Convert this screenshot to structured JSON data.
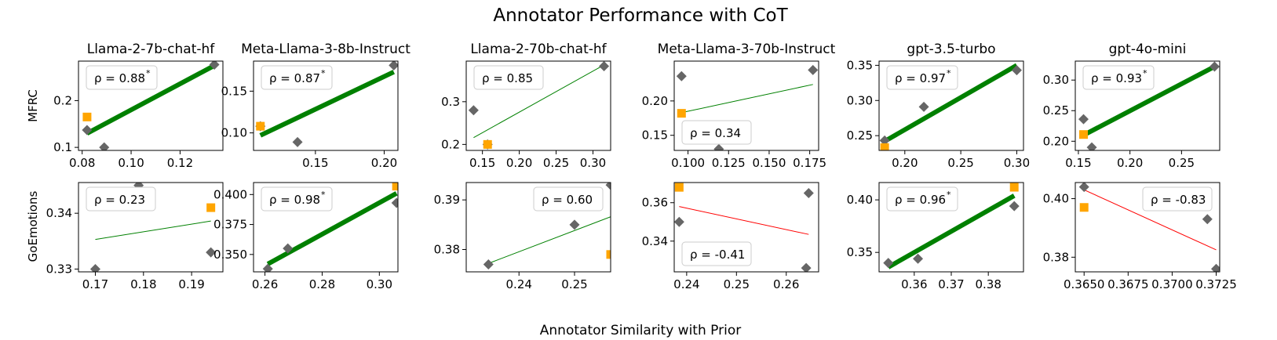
{
  "figure": {
    "title": "Annotator Performance with CoT",
    "xlabel": "Annotator Similarity with Prior",
    "row_labels": [
      "MFRC",
      "GoEmotions"
    ],
    "col_titles": [
      "Llama-2-7b-chat-hf",
      "Meta-Llama-3-8b-Instruct",
      "Llama-2-70b-chat-hf",
      "Meta-Llama-3-70b-Instruct",
      "gpt-3.5-turbo",
      "gpt-4o-mini"
    ]
  },
  "colors": {
    "point": "#666666",
    "highlight": "#ffa500",
    "positive_fit": "#008000",
    "negative_fit": "#ff0000",
    "box_edge": "#cccccc"
  },
  "chart_data": [
    {
      "type": "scatter",
      "row": "MFRC",
      "title": "Llama-2-7b-chat-hf",
      "rho_label": "ρ = 0.88",
      "sig": true,
      "box": "top-left",
      "lw": 6,
      "xlim": [
        0.0785,
        0.1375
      ],
      "ylim": [
        0.0935,
        0.2845
      ],
      "xticks": [
        0.08,
        0.1,
        0.12
      ],
      "xtick_labels": [
        "0.08",
        "0.10",
        "0.12"
      ],
      "yticks": [
        0.1,
        0.2
      ],
      "ytick_labels": [
        "0.1",
        "0.2"
      ],
      "points": [
        [
          0.082,
          0.137
        ],
        [
          0.134,
          0.277
        ],
        [
          0.089,
          0.1
        ]
      ],
      "highlight": [
        [
          0.082,
          0.165
        ]
      ],
      "fit": [
        [
          0.082,
          0.13
        ],
        [
          0.134,
          0.275
        ]
      ]
    },
    {
      "type": "scatter",
      "row": "MFRC",
      "title": "Meta-Llama-3-8b-Instruct",
      "rho_label": "ρ = 0.87",
      "sig": true,
      "box": "top-left",
      "lw": 6,
      "xlim": [
        0.105,
        0.21
      ],
      "ylim": [
        0.079,
        0.186
      ],
      "xticks": [
        0.15,
        0.2
      ],
      "xtick_labels": [
        "0.15",
        "0.20"
      ],
      "yticks": [
        0.1,
        0.15
      ],
      "ytick_labels": [
        "0.10",
        "0.15"
      ],
      "points": [
        [
          0.11,
          0.108
        ],
        [
          0.137,
          0.089
        ],
        [
          0.207,
          0.181
        ]
      ],
      "highlight": [
        [
          0.11,
          0.108
        ]
      ],
      "fit": [
        [
          0.11,
          0.097
        ],
        [
          0.207,
          0.173
        ]
      ]
    },
    {
      "type": "scatter",
      "row": "MFRC",
      "title": "Llama-2-70b-chat-hf",
      "rho_label": "ρ = 0.85",
      "sig": false,
      "box": "top-left",
      "lw": 1,
      "xlim": [
        0.128,
        0.324
      ],
      "ylim": [
        0.186,
        0.395
      ],
      "xticks": [
        0.15,
        0.2,
        0.25,
        0.3
      ],
      "xtick_labels": [
        "0.15",
        "0.20",
        "0.25",
        "0.30"
      ],
      "yticks": [
        0.2,
        0.3
      ],
      "ytick_labels": [
        "0.2",
        "0.3"
      ],
      "points": [
        [
          0.138,
          0.28
        ],
        [
          0.157,
          0.2
        ],
        [
          0.315,
          0.383
        ]
      ],
      "highlight": [
        [
          0.157,
          0.2
        ]
      ],
      "fit": [
        [
          0.138,
          0.216
        ],
        [
          0.315,
          0.386
        ]
      ]
    },
    {
      "type": "scatter",
      "row": "MFRC",
      "title": "Meta-Llama-3-70b-Instruct",
      "rho_label": "ρ = 0.34",
      "sig": false,
      "box": "bottom-left",
      "lw": 1,
      "xlim": [
        0.0915,
        0.1805
      ],
      "ylim": [
        0.128,
        0.258
      ],
      "xticks": [
        0.1,
        0.125,
        0.15,
        0.175
      ],
      "xtick_labels": [
        "0.100",
        "0.125",
        "0.150",
        "0.175"
      ],
      "yticks": [
        0.15,
        0.2
      ],
      "ytick_labels": [
        "0.15",
        "0.20"
      ],
      "points": [
        [
          0.096,
          0.236
        ],
        [
          0.119,
          0.13
        ],
        [
          0.177,
          0.245
        ]
      ],
      "highlight": [
        [
          0.096,
          0.182
        ]
      ],
      "fit": [
        [
          0.096,
          0.183
        ],
        [
          0.177,
          0.224
        ]
      ]
    },
    {
      "type": "scatter",
      "row": "MFRC",
      "title": "gpt-3.5-turbo",
      "rho_label": "ρ = 0.97",
      "sig": true,
      "box": "top-left",
      "lw": 6,
      "xlim": [
        0.177,
        0.306
      ],
      "ylim": [
        0.229,
        0.356
      ],
      "xticks": [
        0.2,
        0.25,
        0.3
      ],
      "xtick_labels": [
        "0.20",
        "0.25",
        "0.30"
      ],
      "yticks": [
        0.25,
        0.3,
        0.35
      ],
      "ytick_labels": [
        "0.25",
        "0.30",
        "0.35"
      ],
      "points": [
        [
          0.182,
          0.243
        ],
        [
          0.217,
          0.291
        ],
        [
          0.3,
          0.343
        ]
      ],
      "highlight": [
        [
          0.182,
          0.233
        ]
      ],
      "fit": [
        [
          0.182,
          0.242
        ],
        [
          0.3,
          0.35
        ]
      ]
    },
    {
      "type": "scatter",
      "row": "MFRC",
      "title": "gpt-4o-mini",
      "rho_label": "ρ = 0.93",
      "sig": true,
      "box": "top-left",
      "lw": 6,
      "xlim": [
        0.147,
        0.287
      ],
      "ylim": [
        0.185,
        0.331
      ],
      "xticks": [
        0.15,
        0.2,
        0.25
      ],
      "xtick_labels": [
        "0.15",
        "0.20",
        "0.25"
      ],
      "yticks": [
        0.2,
        0.25,
        0.3
      ],
      "ytick_labels": [
        "0.20",
        "0.25",
        "0.30"
      ],
      "points": [
        [
          0.155,
          0.236
        ],
        [
          0.163,
          0.19
        ],
        [
          0.282,
          0.322
        ]
      ],
      "highlight": [
        [
          0.155,
          0.211
        ]
      ],
      "fit": [
        [
          0.155,
          0.21
        ],
        [
          0.282,
          0.322
        ]
      ]
    },
    {
      "type": "scatter",
      "row": "GoEmotions",
      "title": "",
      "rho_label": "ρ = 0.23",
      "sig": false,
      "box": "top-left",
      "lw": 1,
      "xlim": [
        0.1665,
        0.1965
      ],
      "ylim": [
        0.3295,
        0.3455
      ],
      "xticks": [
        0.17,
        0.18,
        0.19
      ],
      "xtick_labels": [
        "0.17",
        "0.18",
        "0.19"
      ],
      "yticks": [
        0.33,
        0.34
      ],
      "ytick_labels": [
        "0.33",
        "0.34"
      ],
      "points": [
        [
          0.17,
          0.33
        ],
        [
          0.179,
          0.345
        ],
        [
          0.194,
          0.333
        ]
      ],
      "highlight": [
        [
          0.194,
          0.341
        ]
      ],
      "fit": [
        [
          0.17,
          0.3353
        ],
        [
          0.194,
          0.3386
        ]
      ]
    },
    {
      "type": "scatter",
      "row": "GoEmotions",
      "title": "",
      "rho_label": "ρ = 0.98",
      "sig": true,
      "box": "top-left",
      "lw": 6,
      "xlim": [
        0.256,
        0.3065
      ],
      "ylim": [
        0.3355,
        0.41
      ],
      "xticks": [
        0.26,
        0.28,
        0.3
      ],
      "xtick_labels": [
        "0.26",
        "0.28",
        "0.30"
      ],
      "yticks": [
        0.35,
        0.375,
        0.4
      ],
      "ytick_labels": [
        "0.350",
        "0.375",
        "0.400"
      ],
      "points": [
        [
          0.261,
          0.338
        ],
        [
          0.268,
          0.355
        ],
        [
          0.306,
          0.393
        ]
      ],
      "highlight": [
        [
          0.306,
          0.407
        ]
      ],
      "fit": [
        [
          0.261,
          0.342
        ],
        [
          0.306,
          0.401
        ]
      ]
    },
    {
      "type": "scatter",
      "row": "GoEmotions",
      "title": "",
      "rho_label": "ρ = 0.60",
      "sig": false,
      "box": "top-right",
      "lw": 1,
      "xlim": [
        0.2305,
        0.2565
      ],
      "ylim": [
        0.3755,
        0.3935
      ],
      "xticks": [
        0.24,
        0.25
      ],
      "xtick_labels": [
        "0.24",
        "0.25"
      ],
      "yticks": [
        0.38,
        0.39
      ],
      "ytick_labels": [
        "0.38",
        "0.39"
      ],
      "points": [
        [
          0.2345,
          0.377
        ],
        [
          0.25,
          0.385
        ],
        [
          0.2565,
          0.393
        ]
      ],
      "highlight": [
        [
          0.2565,
          0.379
        ]
      ],
      "fit": [
        [
          0.2345,
          0.3772
        ],
        [
          0.2565,
          0.3866
        ]
      ]
    },
    {
      "type": "scatter",
      "row": "GoEmotions",
      "title": "",
      "rho_label": "ρ = -0.41",
      "sig": false,
      "box": "bottom-left",
      "lw": 1,
      "xlim": [
        0.2375,
        0.2665
      ],
      "ylim": [
        0.324,
        0.3705
      ],
      "xticks": [
        0.24,
        0.25,
        0.26
      ],
      "xtick_labels": [
        "0.24",
        "0.25",
        "0.26"
      ],
      "yticks": [
        0.34,
        0.36
      ],
      "ytick_labels": [
        "0.34",
        "0.36"
      ],
      "points": [
        [
          0.2385,
          0.35
        ],
        [
          0.2645,
          0.365
        ],
        [
          0.264,
          0.326
        ]
      ],
      "highlight": [
        [
          0.2385,
          0.368
        ]
      ],
      "fit": [
        [
          0.2385,
          0.358
        ],
        [
          0.2645,
          0.3435
        ]
      ]
    },
    {
      "type": "scatter",
      "row": "GoEmotions",
      "title": "",
      "rho_label": "ρ = 0.96",
      "sig": true,
      "box": "top-left",
      "lw": 6,
      "xlim": [
        0.3505,
        0.3895
      ],
      "ylim": [
        0.3315,
        0.4165
      ],
      "xticks": [
        0.36,
        0.37,
        0.38
      ],
      "xtick_labels": [
        "0.36",
        "0.37",
        "0.38"
      ],
      "yticks": [
        0.35,
        0.4
      ],
      "ytick_labels": [
        "0.35",
        "0.40"
      ],
      "points": [
        [
          0.353,
          0.34
        ],
        [
          0.361,
          0.344
        ],
        [
          0.387,
          0.394
        ]
      ],
      "highlight": [
        [
          0.387,
          0.412
        ]
      ],
      "fit": [
        [
          0.353,
          0.336
        ],
        [
          0.387,
          0.404
        ]
      ]
    },
    {
      "type": "scatter",
      "row": "GoEmotions",
      "title": "",
      "rho_label": "ρ = -0.83",
      "sig": false,
      "box": "top-right",
      "lw": 1,
      "xlim": [
        0.3645,
        0.3727
      ],
      "ylim": [
        0.375,
        0.4055
      ],
      "xticks": [
        0.365,
        0.3675,
        0.37,
        0.3725
      ],
      "xtick_labels": [
        "0.3650",
        "0.3675",
        "0.3700",
        "0.3725"
      ],
      "yticks": [
        0.38,
        0.4
      ],
      "ytick_labels": [
        "0.38",
        "0.40"
      ],
      "points": [
        [
          0.365,
          0.404
        ],
        [
          0.372,
          0.393
        ],
        [
          0.3725,
          0.376
        ]
      ],
      "highlight": [
        [
          0.365,
          0.397
        ]
      ],
      "fit": [
        [
          0.365,
          0.403
        ],
        [
          0.3725,
          0.3825
        ]
      ]
    }
  ]
}
